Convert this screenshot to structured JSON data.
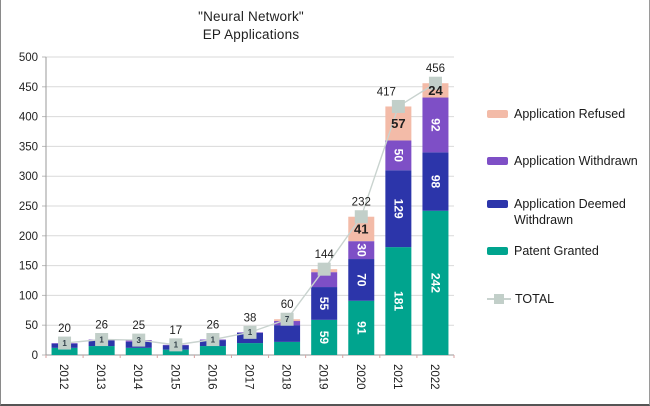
{
  "title": {
    "line1": "\"Neural Network\"",
    "line2": "EP Applications"
  },
  "chart_data": {
    "type": "bar",
    "stacked": true,
    "title": "\"Neural Network\" EP Applications",
    "categories": [
      "2012",
      "2013",
      "2014",
      "2015",
      "2016",
      "2017",
      "2018",
      "2019",
      "2020",
      "2021",
      "2022"
    ],
    "series": [
      {
        "name": "Patent Granted",
        "color": "#00a48e",
        "label_color": "#ffffff",
        "values": [
          12,
          15,
          12,
          9,
          15,
          20,
          22,
          59,
          91,
          181,
          242
        ],
        "labels": [
          "",
          "",
          "",
          "",
          "",
          "",
          "",
          "59",
          "91",
          "181",
          "242"
        ]
      },
      {
        "name": "Application Deemed Withdrawn",
        "color": "#2c35aa",
        "label_color": "#ffffff",
        "values": [
          7,
          10,
          10,
          7,
          10,
          17,
          28,
          55,
          70,
          129,
          98
        ],
        "labels": [
          "",
          "",
          "",
          "",
          "",
          "",
          "",
          "55",
          "70",
          "129",
          "98"
        ]
      },
      {
        "name": "Application Withdrawn",
        "color": "#7e4fc6",
        "label_color": "#ffffff",
        "values": [
          1,
          1,
          3,
          1,
          1,
          1,
          7,
          25,
          30,
          50,
          92
        ],
        "labels": [
          "",
          "",
          "",
          "",
          "",
          "",
          "",
          "",
          "30",
          "50",
          "92"
        ]
      },
      {
        "name": "Application Refused",
        "color": "#f3bba8",
        "label_color": "#1f1f1f",
        "label_horizontal": true,
        "values": [
          0,
          0,
          0,
          0,
          0,
          0,
          3,
          5,
          41,
          57,
          24
        ],
        "labels": [
          "",
          "",
          "",
          "",
          "",
          "",
          "",
          "",
          "41",
          "57",
          "24"
        ]
      }
    ],
    "totals": [
      20,
      26,
      25,
      17,
      26,
      38,
      60,
      144,
      232,
      417,
      456
    ],
    "total_series_name": "TOTal",
    "marker_labels": [
      "1",
      "1",
      "3",
      "1",
      "1",
      "1",
      "7",
      "",
      "",
      "",
      ""
    ],
    "line_color": "#c9d3cf",
    "marker_color": "#c2cfc9",
    "grid": true,
    "gridline_color": "#d9d9d9",
    "axis_color": "#9a9a9a",
    "tick_color": "#d9a2a2",
    "xlabel": "",
    "ylabel": "",
    "ylim": [
      0,
      500
    ],
    "ytick_step": 50,
    "legend_position": "right"
  },
  "legend": {
    "items": [
      {
        "label": "Application Refused",
        "swatch": "box",
        "color": "#f3bba8"
      },
      {
        "label": "Application Withdrawn",
        "swatch": "box",
        "color": "#7e4fc6"
      },
      {
        "label": "Application Deemed\nWithdrawn",
        "swatch": "box",
        "color": "#2c35aa"
      },
      {
        "label": "Patent Granted",
        "swatch": "box",
        "color": "#00a48e"
      },
      {
        "label": "TOTAL",
        "swatch": "line",
        "color": "#c2cfc9",
        "line_color": "#c9d3cf"
      }
    ]
  }
}
